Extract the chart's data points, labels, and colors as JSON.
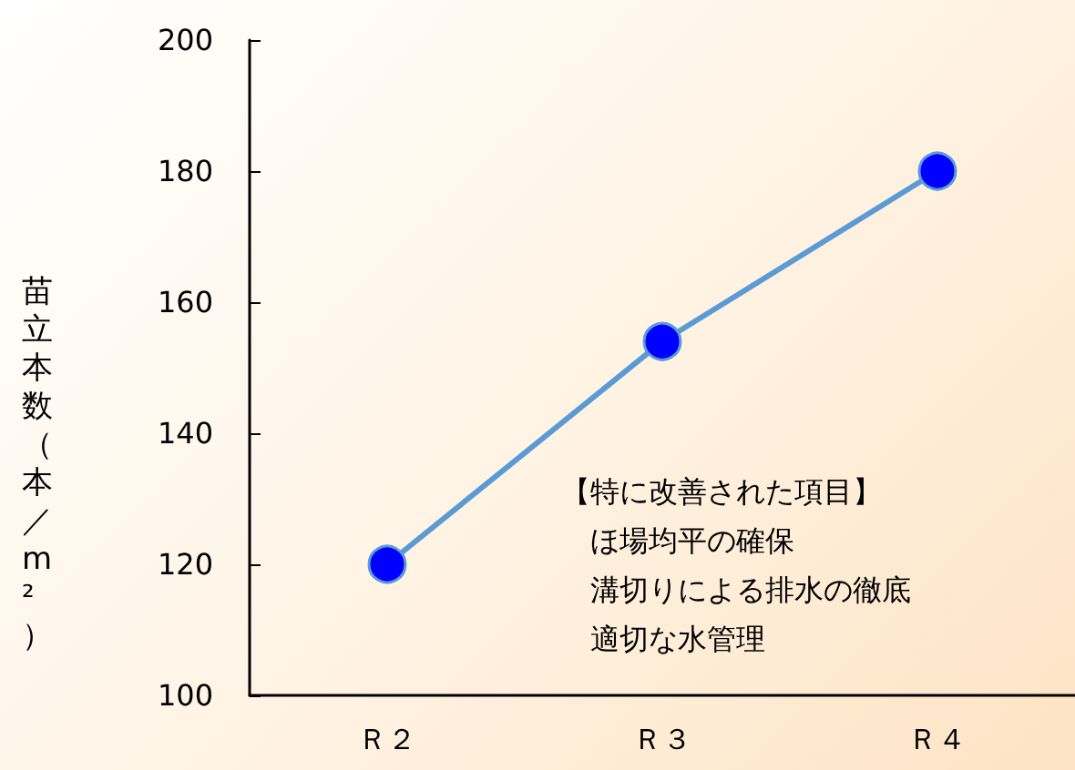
{
  "chart_data": {
    "type": "line",
    "ylabel": "苗立本数（本／m²）",
    "categories": [
      "Ｒ２",
      "Ｒ３",
      "Ｒ４"
    ],
    "series": [
      {
        "color": "#5b9bd5",
        "values": [
          120,
          154,
          180
        ]
      }
    ],
    "marker": "circle",
    "line_style": "solid",
    "ylim": [
      100,
      200
    ],
    "yticks": [
      100,
      120,
      140,
      160,
      180,
      200
    ],
    "grid": false,
    "annotations": [
      "【特に改善された項目】",
      "ほ場均平の確保",
      "溝切りによる排水の徹底",
      "適切な水管理"
    ]
  }
}
